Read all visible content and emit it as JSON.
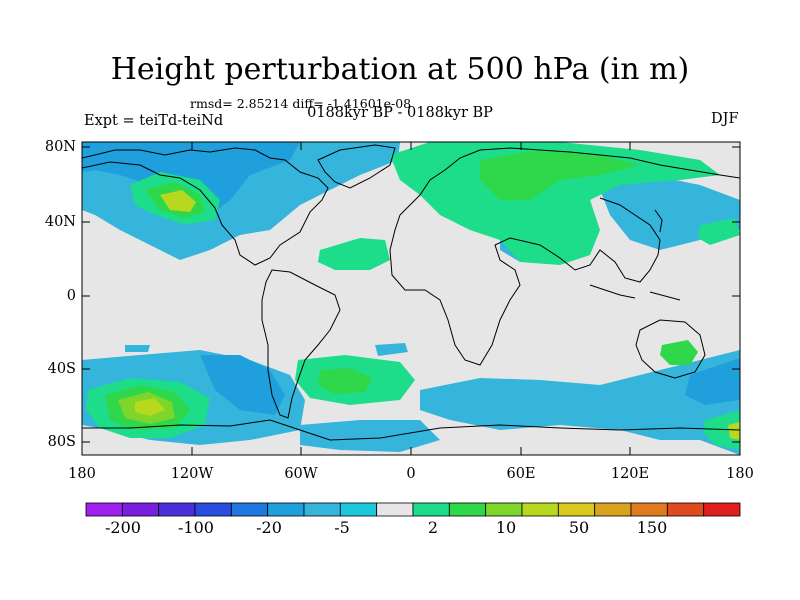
{
  "header": {
    "title": "Height perturbation at 500 hPa (in m)",
    "stats": "rmsd= 2.85214 diff= -1.41601e-08",
    "period": "0188kyr BP - 0188kyr BP",
    "experiment": "Expt = teiTd-teiNd",
    "season": "DJF"
  },
  "map": {
    "lat_ticks": [
      "80N",
      "40N",
      "0",
      "40S",
      "80S"
    ],
    "lon_ticks": [
      "180",
      "120W",
      "60W",
      "0",
      "60E",
      "120E",
      "180"
    ],
    "background_color": "#e6e6e6",
    "coastline_color": "#000000"
  },
  "colorbar": {
    "colors": [
      "#a020f0",
      "#7a1fe0",
      "#4a2fdb",
      "#2a4de0",
      "#1f78e0",
      "#1f9fdb",
      "#35b4dc",
      "#1dc8dd",
      "#e6e6e6",
      "#1ddc8a",
      "#2fd74a",
      "#7ed62a",
      "#b8d81f",
      "#d8c81f",
      "#d8a21f",
      "#e07a1f",
      "#e04a1f",
      "#e01f1f"
    ],
    "labels": [
      "-200",
      "-100",
      "-20",
      "-5",
      "2",
      "10",
      "50",
      "150"
    ]
  }
}
